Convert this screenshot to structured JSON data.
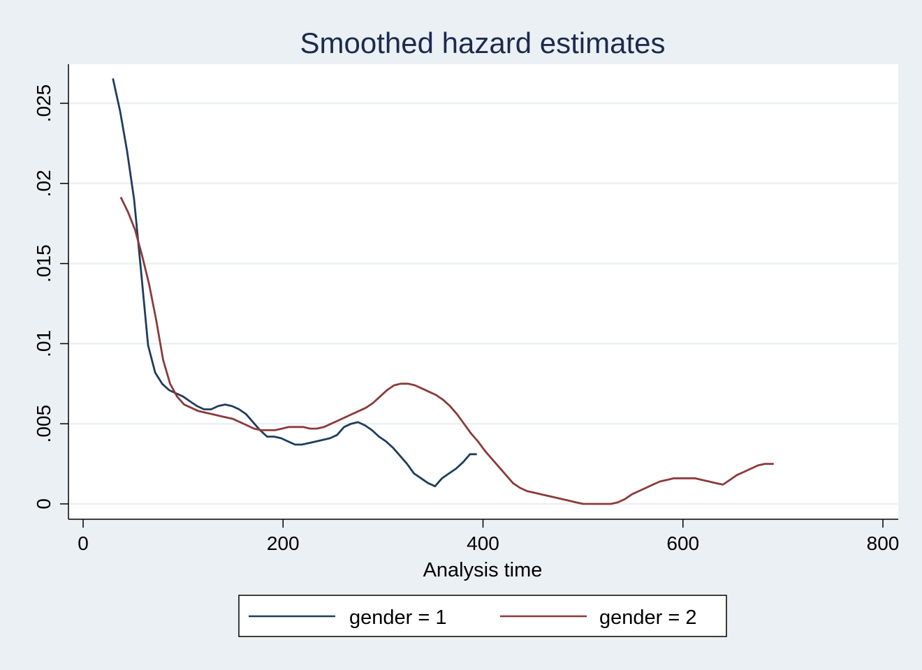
{
  "chart_data": {
    "type": "line",
    "title": "Smoothed hazard estimates",
    "xlabel": "Analysis time",
    "ylabel": "",
    "xlim": [
      0,
      800
    ],
    "ylim": [
      0,
      0.027
    ],
    "x_ticks": [
      0,
      200,
      400,
      600,
      800
    ],
    "x_tick_labels": [
      "0",
      "200",
      "400",
      "600",
      "800"
    ],
    "y_ticks": [
      0,
      0.005,
      0.01,
      0.015,
      0.02,
      0.025
    ],
    "y_tick_labels": [
      "0",
      ".005",
      ".01",
      ".015",
      ".02",
      ".025"
    ],
    "grid": "horizontal",
    "legend_position": "bottom",
    "colors": {
      "background": "#eaf0f3",
      "plot_area": "#ffffff",
      "title": "#1c2a4d",
      "grid": "#eaf0f3"
    },
    "series": [
      {
        "name": "gender = 1",
        "color": "#1e3d5c",
        "x": [
          30,
          37,
          44,
          51,
          58,
          65,
          72,
          79,
          86,
          93,
          100,
          107,
          114,
          121,
          128,
          135,
          142,
          149,
          156,
          163,
          170,
          177,
          184,
          191,
          198,
          205,
          212,
          219,
          226,
          233,
          240,
          247,
          254,
          261,
          268,
          275,
          282,
          289,
          296,
          303,
          310,
          317,
          324,
          331,
          338,
          345,
          352,
          359,
          366,
          373,
          380,
          387,
          393
        ],
        "y": [
          0.0265,
          0.0245,
          0.022,
          0.019,
          0.0145,
          0.0099,
          0.0082,
          0.0075,
          0.0071,
          0.0069,
          0.0067,
          0.0064,
          0.0061,
          0.0059,
          0.0059,
          0.0061,
          0.0062,
          0.0061,
          0.0059,
          0.0056,
          0.0051,
          0.0046,
          0.0042,
          0.0042,
          0.0041,
          0.0039,
          0.0037,
          0.0037,
          0.0038,
          0.0039,
          0.004,
          0.0041,
          0.0043,
          0.0048,
          0.005,
          0.0051,
          0.0049,
          0.0046,
          0.0042,
          0.0039,
          0.0035,
          0.003,
          0.0025,
          0.0019,
          0.0016,
          0.0013,
          0.0011,
          0.0016,
          0.0019,
          0.0022,
          0.0026,
          0.0031,
          0.0031
        ]
      },
      {
        "name": "gender = 2",
        "color": "#8b3a3a",
        "x": [
          38,
          45,
          52,
          59,
          66,
          73,
          80,
          87,
          94,
          101,
          108,
          115,
          122,
          129,
          136,
          143,
          150,
          157,
          164,
          171,
          178,
          185,
          192,
          199,
          206,
          213,
          220,
          227,
          234,
          241,
          248,
          255,
          262,
          269,
          276,
          283,
          290,
          297,
          304,
          311,
          318,
          325,
          332,
          339,
          346,
          353,
          360,
          367,
          374,
          381,
          388,
          395,
          402,
          409,
          416,
          423,
          430,
          437,
          444,
          451,
          458,
          465,
          472,
          479,
          486,
          493,
          500,
          507,
          514,
          521,
          528,
          535,
          542,
          549,
          556,
          563,
          570,
          577,
          584,
          591,
          598,
          605,
          612,
          619,
          626,
          633,
          640,
          647,
          654,
          661,
          668,
          675,
          682,
          690
        ],
        "y": [
          0.0191,
          0.0182,
          0.0171,
          0.0155,
          0.0137,
          0.0115,
          0.009,
          0.0075,
          0.0067,
          0.0062,
          0.006,
          0.0058,
          0.0057,
          0.0056,
          0.0055,
          0.0054,
          0.0053,
          0.0051,
          0.0049,
          0.0047,
          0.0046,
          0.0046,
          0.0046,
          0.0047,
          0.0048,
          0.0048,
          0.0048,
          0.0047,
          0.0047,
          0.0048,
          0.005,
          0.0052,
          0.0054,
          0.0056,
          0.0058,
          0.006,
          0.0063,
          0.0067,
          0.0071,
          0.0074,
          0.0075,
          0.0075,
          0.0074,
          0.0072,
          0.007,
          0.0068,
          0.0065,
          0.0061,
          0.0056,
          0.005,
          0.0044,
          0.0039,
          0.0033,
          0.0028,
          0.0023,
          0.0018,
          0.0013,
          0.001,
          0.0008,
          0.0007,
          0.0006,
          0.0005,
          0.0004,
          0.0003,
          0.0002,
          0.0001,
          0.0,
          0.0,
          0.0,
          0.0,
          0.0,
          0.0001,
          0.0003,
          0.0006,
          0.0008,
          0.001,
          0.0012,
          0.0014,
          0.0015,
          0.0016,
          0.0016,
          0.0016,
          0.0016,
          0.0015,
          0.0014,
          0.0013,
          0.0012,
          0.0015,
          0.0018,
          0.002,
          0.0022,
          0.0024,
          0.0025,
          0.0025
        ]
      }
    ]
  }
}
